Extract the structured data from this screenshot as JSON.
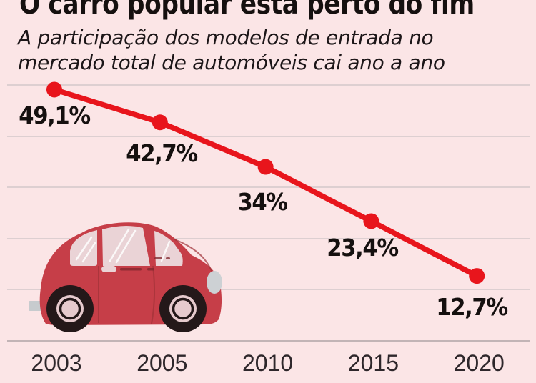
{
  "header": {
    "title": "O carro popular está perto do fim",
    "subtitle_lines": [
      "A participação dos modelos de entrada no",
      "mercado total de automóveis cai ano a ano"
    ]
  },
  "chart_data": {
    "type": "line",
    "title": "O carro popular está perto do fim",
    "subtitle": "A participação dos modelos de entrada no mercado total de automóveis cai ano a ano",
    "categories": [
      "2003",
      "2005",
      "2010",
      "2015",
      "2020"
    ],
    "values": [
      49.1,
      42.7,
      34,
      23.4,
      12.7
    ],
    "value_labels": [
      "49,1%",
      "42,7%",
      "34%",
      "23,4%",
      "12,7%"
    ],
    "xlabel": "",
    "ylabel": "",
    "ylim": [
      0,
      50
    ],
    "grid": true,
    "gridline_values": [
      10,
      20,
      30,
      40,
      50
    ],
    "legend": "none",
    "line_color": "#e8151c",
    "point_color": "#e8151c"
  },
  "illustration": {
    "name": "red-popular-car",
    "body_color": "#c63e48",
    "window_color": "#ead3d6",
    "tire_color": "#241819",
    "hub_color": "#e6cacd",
    "headlight_color": "#cdd1d4"
  },
  "colors": {
    "background": "#fbe5e6",
    "gridline": "#ddcfd1",
    "axis": "#c2b4b6",
    "text": "#15100f"
  }
}
